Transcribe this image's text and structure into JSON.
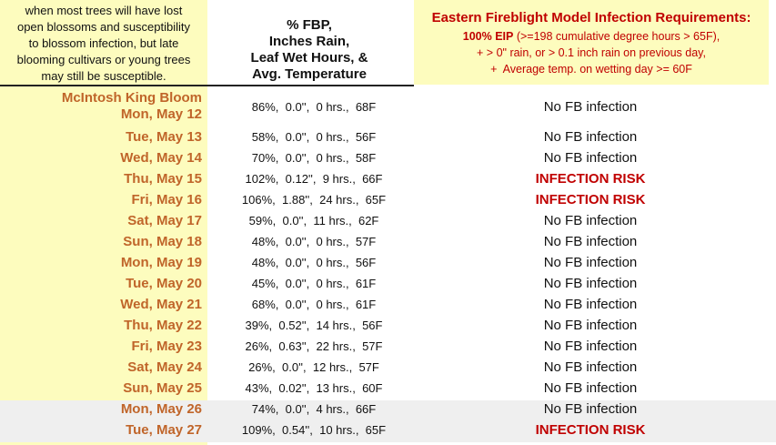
{
  "header": {
    "left_note": [
      "when most trees will have lost",
      "open blossoms and susceptibility",
      "to blossom infection, but late",
      "blooming cultivars or young trees",
      "may still be susceptible."
    ],
    "middle": [
      "% FBP,",
      "Inches Rain,",
      "Leaf Wet Hours, &",
      "Avg. Temperature"
    ],
    "right_title": "Eastern Fireblight Model Infection Requirements:",
    "right_lines": [
      {
        "bold": "100% EIP",
        "text": " (>=198 cumulative degree hours > 65F),"
      },
      {
        "text": "+ > 0\" rain, or > 0.1 inch rain on previous day,"
      },
      {
        "text": "+  Average temp. on wetting day >= 60F"
      }
    ]
  },
  "table": {
    "rows": [
      {
        "label": "McIntosh King Bloom",
        "date": "Mon, May 12",
        "values": "86%,  0.0'',  0 hrs.,  68F",
        "result": "No FB infection"
      },
      {
        "date": "Tue, May 13",
        "values": "58%,  0.0'',  0 hrs.,  56F",
        "result": "No FB infection"
      },
      {
        "date": "Wed, May 14",
        "values": "70%,  0.0'',  0 hrs.,  58F",
        "result": "No FB infection"
      },
      {
        "date": "Thu, May 15",
        "values": "102%,  0.12'',  9 hrs.,  66F",
        "result": "INFECTION RISK"
      },
      {
        "date": "Fri, May 16",
        "values": "106%,  1.88'',  24 hrs.,  65F",
        "result": "INFECTION RISK"
      },
      {
        "date": "Sat, May 17",
        "values": "59%,  0.0'',  11 hrs.,  62F",
        "result": "No FB infection"
      },
      {
        "date": "Sun, May 18",
        "values": "48%,  0.0'',  0 hrs.,  57F",
        "result": "No FB infection"
      },
      {
        "date": "Mon, May 19",
        "values": "48%,  0.0'',  0 hrs.,  56F",
        "result": "No FB infection"
      },
      {
        "date": "Tue, May 20",
        "values": "45%,  0.0'',  0 hrs.,  61F",
        "result": "No FB infection"
      },
      {
        "date": "Wed, May 21",
        "values": "68%,  0.0'',  0 hrs.,  61F",
        "result": "No FB infection"
      },
      {
        "date": "Thu, May 22",
        "values": "39%,  0.52'',  14 hrs.,  56F",
        "result": "No FB infection"
      },
      {
        "date": "Fri, May 23",
        "values": "26%,  0.63'',  22 hrs.,  57F",
        "result": "No FB infection"
      },
      {
        "date": "Sat, May 24",
        "values": "26%,  0.0'',  12 hrs.,  57F",
        "result": "No FB infection"
      },
      {
        "date": "Sun, May 25",
        "values": "43%,  0.02'',  13 hrs.,  60F",
        "result": "No FB infection"
      },
      {
        "date": "Mon, May 26",
        "values": "74%,  0.0'',  4 hrs.,  66F",
        "result": "No FB infection"
      },
      {
        "date": "Tue, May 27",
        "values": "109%,  0.54'',  10 hrs.,  65F",
        "result": "INFECTION RISK"
      }
    ]
  }
}
